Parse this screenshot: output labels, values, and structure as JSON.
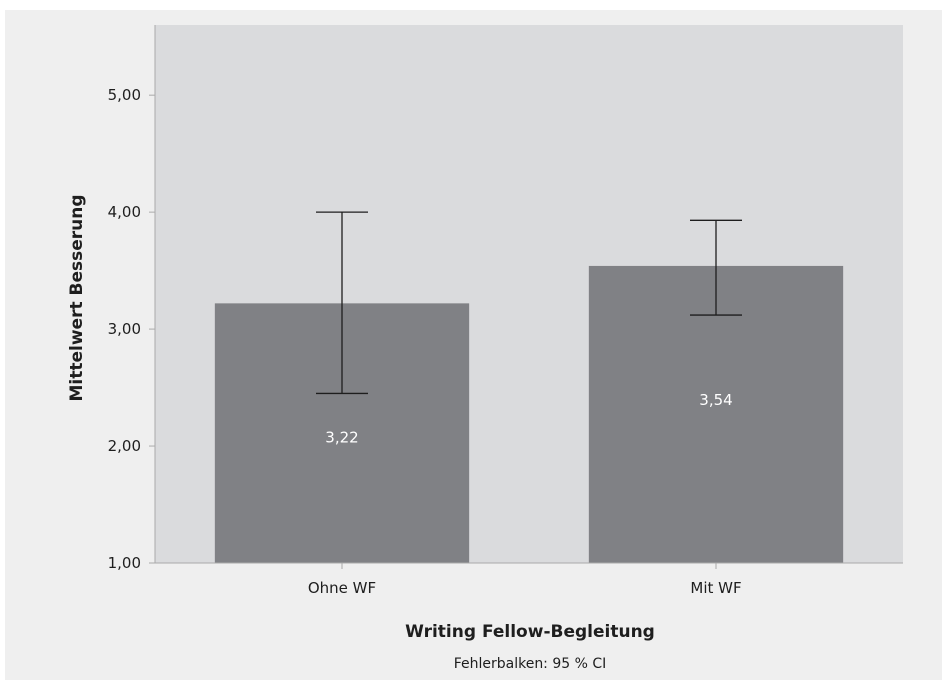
{
  "chart_data": {
    "type": "bar",
    "categories": [
      "Ohne WF",
      "Mit WF"
    ],
    "values": [
      3.22,
      3.54
    ],
    "value_labels": [
      "3,22",
      "3,54"
    ],
    "error_bars": [
      {
        "low": 2.45,
        "high": 4.0
      },
      {
        "low": 3.12,
        "high": 3.93
      }
    ],
    "xlabel": "Writing Fellow-Begleitung",
    "ylabel": "Mittelwert Besserung",
    "note": "Fehlerbalken: 95 % CI",
    "ylim": [
      1.0,
      5.6
    ],
    "yticks": [
      1,
      2,
      3,
      4,
      5
    ],
    "ytick_labels": [
      "1,00",
      "2,00",
      "3,00",
      "4,00",
      "5,00"
    ],
    "grid": false,
    "colors": {
      "plot_background": "#dadbdd",
      "frame_background": "#efefef",
      "bar": "#808185",
      "axis": "#aaaaaa",
      "error_bar": "#1e1e1e"
    }
  }
}
